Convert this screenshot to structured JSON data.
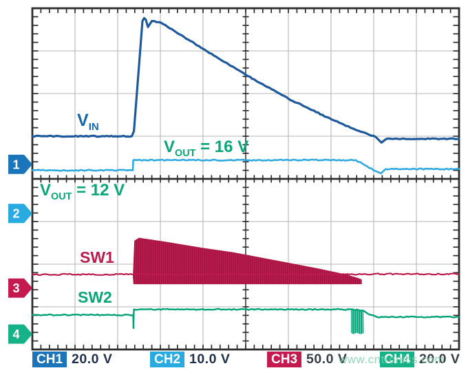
{
  "watermark": {
    "text": "www.cntronics.com",
    "color": "#7fcfab"
  },
  "annotations": {
    "vin": {
      "main": "V",
      "sub": "IN",
      "tail": "",
      "color": "#1467ac"
    },
    "vout16": {
      "main": "V",
      "sub": "OUT",
      "tail": " = 16 V",
      "color": "#0aa678"
    },
    "vout12": {
      "main": "V",
      "sub": "OUT",
      "tail": " = 12 V",
      "color": "#0aa678"
    },
    "sw1": {
      "text": "SW1",
      "color": "#bb1c4d"
    },
    "sw2": {
      "text": "SW2",
      "color": "#0aa678"
    }
  },
  "legend": {
    "items": [
      {
        "ch": "CH1",
        "value": "20.0 V",
        "badge_color": "#1a75bb",
        "value_color": "#20304a"
      },
      {
        "ch": "CH2",
        "value": "10.0 V",
        "badge_color": "#29abe2",
        "value_color": "#20304a"
      },
      {
        "ch": "CH3",
        "value": "50.0 V",
        "badge_color": "#c41a50",
        "value_color": "#383e46"
      },
      {
        "ch": "CH4",
        "value": "20.0 V",
        "badge_color": "#16b287",
        "value_color": "#383e46"
      }
    ]
  },
  "chart_data": {
    "type": "line",
    "title": "",
    "xlabel": "",
    "ylabel": "",
    "x_axis": {
      "unit": "time (divisions)",
      "range": [
        0,
        10
      ],
      "divisions": 10
    },
    "y_axis": {
      "unit": "divisions from top",
      "range": [
        0,
        8
      ],
      "divisions": 8,
      "layout": "two stacked 4-division graticules sharing a center border"
    },
    "grid": true,
    "ground_markers": [
      {
        "label": "1",
        "color": "#1a75bb",
        "y_div": 3.66
      },
      {
        "label": "2",
        "color": "#29abe2",
        "y_div": 4.81
      },
      {
        "label": "3",
        "color": "#c41a50",
        "y_div": 6.56
      },
      {
        "label": "4",
        "color": "#16b287",
        "y_div": 7.64
      }
    ],
    "series": [
      {
        "name": "VIN",
        "channel": "CH1",
        "scale": "20.0 V/div",
        "color": "#1e5a9b",
        "width": 3.2,
        "noise": 1.2,
        "points": [
          [
            0,
            3.0
          ],
          [
            2.33,
            3.0
          ],
          [
            2.38,
            2.88
          ],
          [
            2.58,
            0.3
          ],
          [
            2.62,
            0.23
          ],
          [
            2.66,
            0.27
          ],
          [
            2.71,
            0.44
          ],
          [
            2.8,
            0.3
          ],
          [
            3.02,
            0.34
          ],
          [
            4.0,
            0.95
          ],
          [
            5.0,
            1.56
          ],
          [
            6.0,
            2.12
          ],
          [
            7.0,
            2.6
          ],
          [
            7.6,
            2.86
          ],
          [
            8.05,
            3.02
          ],
          [
            8.18,
            3.15
          ],
          [
            8.3,
            3.06
          ],
          [
            10,
            3.06
          ]
        ]
      },
      {
        "name": "VOUT",
        "channel": "CH2",
        "scale": "10.0 V/div",
        "color": "#2fa9e1",
        "width": 2.6,
        "noise": 1.4,
        "points": [
          [
            0,
            3.8
          ],
          [
            2.355,
            3.8
          ],
          [
            2.365,
            3.56
          ],
          [
            7.58,
            3.56
          ],
          [
            8.05,
            3.82
          ],
          [
            8.17,
            3.87
          ],
          [
            8.28,
            3.77
          ],
          [
            10,
            3.77
          ]
        ]
      },
      {
        "name": "SW1",
        "channel": "CH3",
        "scale": "50.0 V/div",
        "color": "#bb1c4d",
        "width": 2.2,
        "noise": 1.6,
        "points": [
          [
            0,
            6.24
          ],
          [
            2.35,
            6.24
          ],
          [
            7.72,
            6.24
          ],
          [
            7.76,
            6.23
          ],
          [
            10,
            6.23
          ]
        ]
      },
      {
        "name": "SW2",
        "channel": "CH4",
        "scale": "20.0 V/div",
        "color": "#00a377",
        "width": 2.4,
        "noise": 1.4,
        "points": [
          [
            0,
            7.19
          ],
          [
            2.365,
            7.19
          ],
          [
            2.37,
            7.5
          ],
          [
            2.375,
            7.19
          ],
          [
            2.38,
            7.06
          ],
          [
            7.45,
            7.06
          ],
          [
            7.76,
            7.09
          ],
          [
            7.86,
            7.16
          ],
          [
            8.08,
            7.24
          ],
          [
            10,
            7.24
          ]
        ]
      }
    ],
    "bursts": [
      {
        "name": "SW1 switching burst",
        "channel": "CH3",
        "color": "#bb1c4d",
        "texture": "dark",
        "points": [
          [
            2.355,
            6.3
          ],
          [
            2.39,
            5.45
          ],
          [
            2.5,
            5.38
          ],
          [
            3.1,
            5.47
          ],
          [
            4.0,
            5.62
          ],
          [
            4.7,
            5.72
          ],
          [
            5.7,
            5.91
          ],
          [
            6.7,
            6.1
          ],
          [
            7.35,
            6.24
          ],
          [
            7.62,
            6.32
          ],
          [
            7.72,
            6.36
          ],
          [
            7.72,
            6.47
          ],
          [
            2.37,
            6.47
          ]
        ]
      },
      {
        "name": "SW2 pulse burst",
        "channel": "CH4",
        "color": "#00a377",
        "texture": "light",
        "points": [
          [
            7.47,
            7.07
          ],
          [
            7.76,
            7.07
          ],
          [
            7.765,
            7.62
          ],
          [
            7.69,
            7.64
          ],
          [
            7.6,
            7.61
          ],
          [
            7.52,
            7.64
          ],
          [
            7.47,
            7.61
          ]
        ]
      }
    ]
  }
}
